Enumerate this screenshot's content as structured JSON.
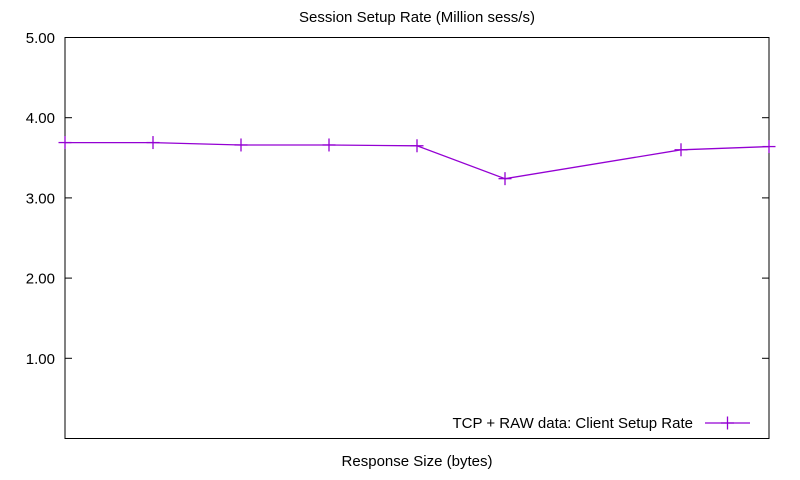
{
  "figure": {
    "background": "#ffffff"
  },
  "chart_data": {
    "type": "line",
    "title": "Session Setup Rate (Million sess/s)",
    "xlabel": "Response Size (bytes)",
    "ylabel": "",
    "ylim": [
      0,
      5
    ],
    "grid": false,
    "axis_color": "#000000",
    "x_tick_labels": [],
    "yticks": [
      {
        "value": 5,
        "label": "5.00"
      },
      {
        "value": 4,
        "label": "4.00"
      },
      {
        "value": 3,
        "label": "3.00"
      },
      {
        "value": 2,
        "label": "2.00"
      },
      {
        "value": 1,
        "label": "1.00"
      }
    ],
    "legend": {
      "position": "bottom-right-inside",
      "box": false
    },
    "series": [
      {
        "name": "TCP + RAW data: Client Setup Rate",
        "color": "#9400d3",
        "marker": "plus",
        "points": [
          {
            "x_fraction": 0.0,
            "value": 3.69
          },
          {
            "x_fraction": 0.125,
            "value": 3.69
          },
          {
            "x_fraction": 0.25,
            "value": 3.66
          },
          {
            "x_fraction": 0.375,
            "value": 3.66
          },
          {
            "x_fraction": 0.5,
            "value": 3.65
          },
          {
            "x_fraction": 0.625,
            "value": 3.24
          },
          {
            "x_fraction": 0.875,
            "value": 3.6
          },
          {
            "x_fraction": 1.0,
            "value": 3.64
          }
        ]
      }
    ]
  }
}
